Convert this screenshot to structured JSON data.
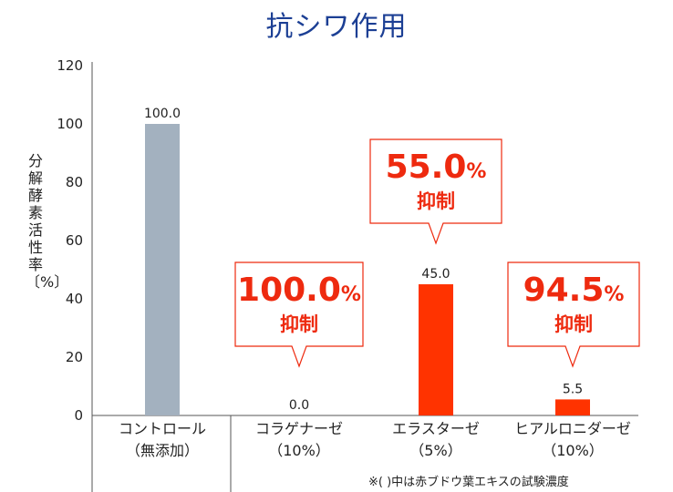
{
  "chart_data": {
    "type": "bar",
    "title": "抗シワ作用",
    "ylabel": "分解酵素活性率〔%〕",
    "ylim": [
      0,
      120
    ],
    "yticks": [
      0,
      20,
      40,
      60,
      80,
      100,
      120
    ],
    "categories": [
      {
        "line1": "コントロール",
        "line2": "（無添加）"
      },
      {
        "line1": "コラゲナーゼ",
        "line2": "（10%）"
      },
      {
        "line1": "エラスターゼ",
        "line2": "（5%）"
      },
      {
        "line1": "ヒアルロニダーゼ",
        "line2": "（10%）"
      }
    ],
    "values": [
      100.0,
      0.0,
      45.0,
      5.5
    ],
    "value_labels": [
      "100.0",
      "0.0",
      "45.0",
      "5.5"
    ],
    "bar_colors": [
      "#a3b1bf",
      "#ff3300",
      "#ff3300",
      "#ff3300"
    ],
    "callouts": [
      null,
      {
        "value": "100.0",
        "unit": "%",
        "text": "抑制"
      },
      {
        "value": "55.0",
        "unit": "%",
        "text": "抑制"
      },
      {
        "value": "94.5",
        "unit": "%",
        "text": "抑制"
      }
    ],
    "footnote": "※( )中は赤ブドウ葉エキスの試験濃度"
  }
}
